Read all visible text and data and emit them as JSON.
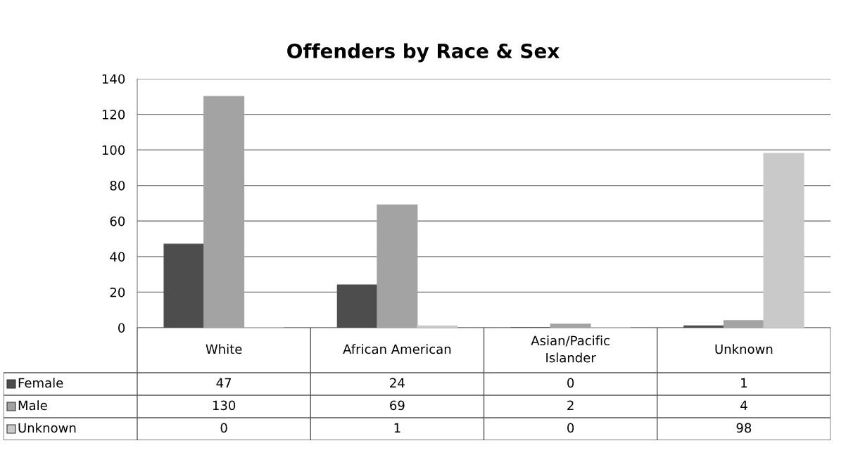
{
  "chart_data": {
    "type": "bar",
    "title": "Offenders by Race & Sex",
    "categories": [
      "White",
      "African American",
      "Asian/Pacific\nIslander",
      "Unknown"
    ],
    "series": [
      {
        "name": "Female",
        "color": "#4d4d4d",
        "values": [
          47,
          24,
          0,
          1
        ]
      },
      {
        "name": "Male",
        "color": "#a3a3a3",
        "values": [
          130,
          69,
          2,
          4
        ]
      },
      {
        "name": "Unknown",
        "color": "#c9c9c9",
        "values": [
          0,
          1,
          0,
          98
        ]
      }
    ],
    "ylim": [
      0,
      140
    ],
    "yticks": [
      0,
      20,
      40,
      60,
      80,
      100,
      120,
      140
    ],
    "grid": "y",
    "data_labels": true,
    "legend": "bottom"
  }
}
